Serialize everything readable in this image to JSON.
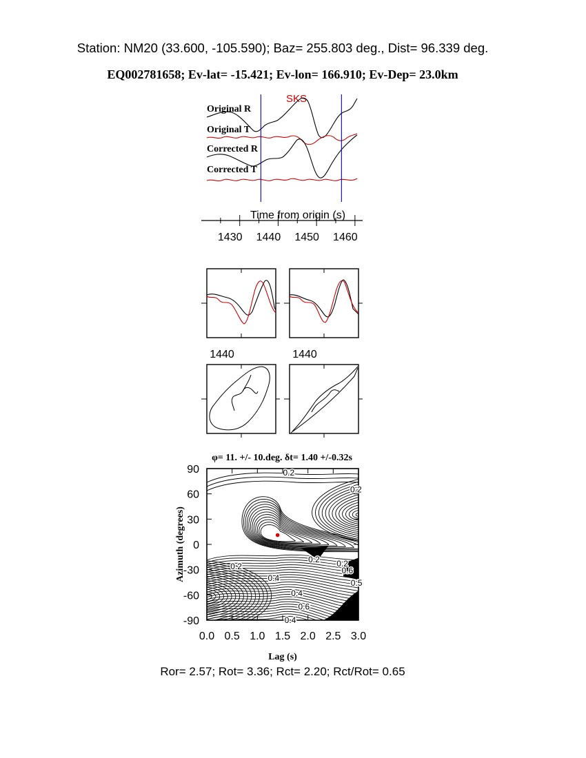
{
  "header": {
    "station_line": "Station: NM20 (33.600, -105.590); Baz=  255.803 deg., Dist=   96.339 deg.",
    "event_line": "EQ002781658; Ev-lat= -15.421; Ev-lon= 166.910; Ev-Dep= 23.0km"
  },
  "chart_data": [
    {
      "type": "line",
      "panel": "seismograms",
      "phase_label": "SKS",
      "xlabel": "Time from origin (s)",
      "xticks": [
        1430,
        1440,
        1450,
        1460
      ],
      "xlim": [
        1420,
        1462
      ],
      "window_markers": [
        1435.5,
        1456.5
      ],
      "series": [
        {
          "name": "Original R",
          "color": "#000000"
        },
        {
          "name": "Original T",
          "color": "#cc0000"
        },
        {
          "name": "Corrected R",
          "color": "#000000"
        },
        {
          "name": "Corrected T",
          "color": "#cc0000"
        }
      ]
    },
    {
      "type": "line",
      "panel": "waveform-overlay",
      "xtick_labels": [
        "1440",
        "1440"
      ]
    },
    {
      "type": "line",
      "panel": "particle-motion"
    },
    {
      "type": "heatmap",
      "panel": "energy-contour",
      "title": "φ= 11. +/- 10.deg. δt= 1.40 +/-0.32s",
      "xlabel": "Lag (s)",
      "ylabel": "Azimuth (degrees)",
      "xlim": [
        0,
        3
      ],
      "ylim": [
        -90,
        90
      ],
      "xticks": [
        "0.0",
        "0.5",
        "1.0",
        "1.5",
        "2.0",
        "2.5",
        "3.0"
      ],
      "yticks": [
        "90",
        "60",
        "30",
        "0",
        "-30",
        "-60",
        "-90"
      ],
      "contour_labels": [
        "0.2",
        "0.2",
        "0.2",
        "0.2",
        "0.4",
        "0.6",
        "0.5",
        "0.2",
        "0.4",
        "0.6",
        "0.4"
      ],
      "best_fit": {
        "lag": 1.4,
        "azimuth": 11
      }
    }
  ],
  "summary": {
    "text": "Ror= 2.57; Rot= 3.36; Rct= 2.20; Rct/Rot= 0.65"
  }
}
